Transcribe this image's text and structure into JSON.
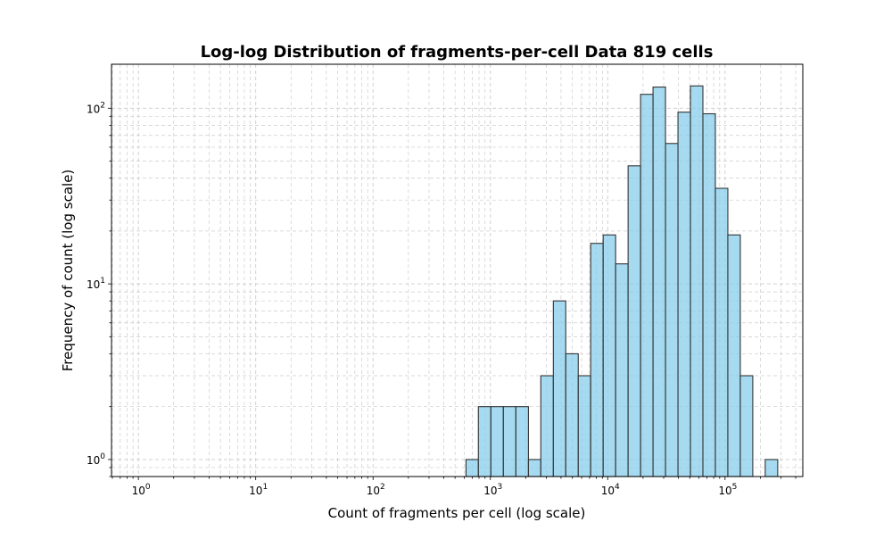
{
  "chart_data": {
    "type": "bar",
    "title": "Log-log Distribution of fragments-per-cell Data 819 cells",
    "xlabel": "Count of fragments per cell (log scale)",
    "ylabel": "Frequency of count (log scale)",
    "x_scale": "log",
    "y_scale": "log",
    "xlim": [
      0.59,
      460000
    ],
    "ylim": [
      0.8,
      178
    ],
    "grid": true,
    "grid_style": "dashed",
    "bar_color": "#87CEEB",
    "edge_color": "#333333",
    "x_ticks": [
      {
        "base": "10",
        "exp": "0",
        "value": 1
      },
      {
        "base": "10",
        "exp": "1",
        "value": 10
      },
      {
        "base": "10",
        "exp": "2",
        "value": 100
      },
      {
        "base": "10",
        "exp": "3",
        "value": 1000
      },
      {
        "base": "10",
        "exp": "4",
        "value": 10000
      },
      {
        "base": "10",
        "exp": "5",
        "value": 100000
      }
    ],
    "y_ticks": [
      {
        "base": "10",
        "exp": "0",
        "value": 1
      },
      {
        "base": "10",
        "exp": "1",
        "value": 10
      },
      {
        "base": "10",
        "exp": "2",
        "value": 100
      }
    ],
    "bins": [
      {
        "x0": 620,
        "x1": 790,
        "count": 1
      },
      {
        "x0": 790,
        "x1": 1010,
        "count": 2
      },
      {
        "x0": 1010,
        "x1": 1290,
        "count": 2
      },
      {
        "x0": 1290,
        "x1": 1650,
        "count": 2
      },
      {
        "x0": 1650,
        "x1": 2110,
        "count": 2
      },
      {
        "x0": 2110,
        "x1": 2690,
        "count": 1
      },
      {
        "x0": 2690,
        "x1": 3440,
        "count": 3
      },
      {
        "x0": 3440,
        "x1": 4390,
        "count": 8
      },
      {
        "x0": 4390,
        "x1": 5610,
        "count": 4
      },
      {
        "x0": 5610,
        "x1": 7160,
        "count": 3
      },
      {
        "x0": 7160,
        "x1": 9150,
        "count": 17
      },
      {
        "x0": 9150,
        "x1": 11680,
        "count": 19
      },
      {
        "x0": 11680,
        "x1": 14920,
        "count": 13
      },
      {
        "x0": 14920,
        "x1": 19060,
        "count": 47
      },
      {
        "x0": 19060,
        "x1": 24340,
        "count": 120
      },
      {
        "x0": 24340,
        "x1": 31090,
        "count": 132
      },
      {
        "x0": 31090,
        "x1": 39700,
        "count": 63
      },
      {
        "x0": 39700,
        "x1": 50710,
        "count": 95
      },
      {
        "x0": 50710,
        "x1": 64760,
        "count": 134
      },
      {
        "x0": 64760,
        "x1": 82720,
        "count": 93
      },
      {
        "x0": 82720,
        "x1": 105650,
        "count": 35
      },
      {
        "x0": 105650,
        "x1": 134940,
        "count": 19
      },
      {
        "x0": 134940,
        "x1": 172340,
        "count": 3
      },
      {
        "x0": 172340,
        "x1": 220110,
        "count": 0
      },
      {
        "x0": 220110,
        "x1": 281120,
        "count": 1
      }
    ]
  }
}
